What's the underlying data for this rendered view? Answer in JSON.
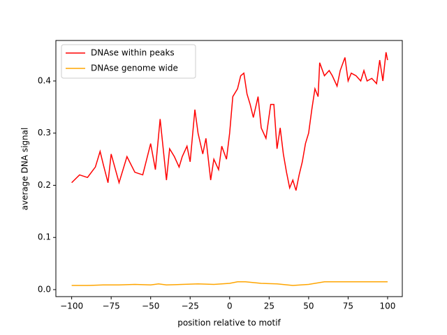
{
  "chart_data": {
    "type": "line",
    "xlabel": "position relative to motif",
    "ylabel": "average DNA signal",
    "xlim": [
      -110,
      109.3
    ],
    "ylim": [
      -0.0134,
      0.4776
    ],
    "xticks": [
      {
        "value": -100,
        "label": "−100"
      },
      {
        "value": -75,
        "label": "−75"
      },
      {
        "value": -50,
        "label": "−50"
      },
      {
        "value": -25,
        "label": "−25"
      },
      0,
      25,
      50,
      75,
      100
    ],
    "yticks": [
      {
        "value": 0,
        "label": "0.0"
      },
      0.1,
      0.2,
      0.3,
      0.4
    ],
    "legend": "upper left",
    "series": [
      {
        "name": "DNAse within peaks",
        "color": "#ff0000",
        "x": [
          -100,
          -95,
          -90,
          -85,
          -82,
          -80,
          -77,
          -75,
          -70,
          -65,
          -60,
          -55,
          -50,
          -47,
          -44,
          -40,
          -38,
          -35,
          -32,
          -30,
          -27,
          -25,
          -22,
          -20,
          -17,
          -15,
          -12,
          -10,
          -7,
          -5,
          -2,
          0,
          2,
          5,
          7,
          9,
          11,
          13,
          15,
          18,
          20,
          23,
          26,
          28,
          30,
          32,
          34,
          36,
          38,
          40,
          42,
          44,
          46,
          48,
          50,
          52,
          54,
          56,
          57,
          60,
          63,
          65,
          68,
          70,
          73,
          75,
          77,
          80,
          83,
          85,
          87,
          90,
          93,
          95,
          97,
          99,
          100
        ],
        "values": [
          0.205,
          0.22,
          0.215,
          0.235,
          0.265,
          0.24,
          0.205,
          0.26,
          0.205,
          0.255,
          0.225,
          0.22,
          0.28,
          0.23,
          0.327,
          0.21,
          0.27,
          0.255,
          0.235,
          0.255,
          0.275,
          0.245,
          0.345,
          0.3,
          0.26,
          0.29,
          0.21,
          0.25,
          0.23,
          0.275,
          0.25,
          0.3,
          0.37,
          0.385,
          0.41,
          0.415,
          0.375,
          0.355,
          0.33,
          0.37,
          0.31,
          0.29,
          0.355,
          0.355,
          0.27,
          0.31,
          0.26,
          0.225,
          0.195,
          0.21,
          0.19,
          0.22,
          0.245,
          0.28,
          0.3,
          0.345,
          0.385,
          0.37,
          0.435,
          0.41,
          0.42,
          0.41,
          0.39,
          0.42,
          0.445,
          0.4,
          0.415,
          0.41,
          0.4,
          0.42,
          0.4,
          0.405,
          0.395,
          0.44,
          0.4,
          0.455,
          0.44
        ]
      },
      {
        "name": "DNAse genome wide",
        "color": "#ffa500",
        "x": [
          -100,
          -90,
          -80,
          -70,
          -60,
          -50,
          -45,
          -40,
          -30,
          -20,
          -10,
          0,
          5,
          10,
          20,
          30,
          40,
          50,
          60,
          70,
          80,
          90,
          100
        ],
        "values": [
          0.008,
          0.008,
          0.009,
          0.009,
          0.01,
          0.009,
          0.011,
          0.009,
          0.01,
          0.011,
          0.01,
          0.012,
          0.015,
          0.015,
          0.012,
          0.011,
          0.008,
          0.01,
          0.015,
          0.015,
          0.015,
          0.015,
          0.015
        ]
      }
    ]
  }
}
